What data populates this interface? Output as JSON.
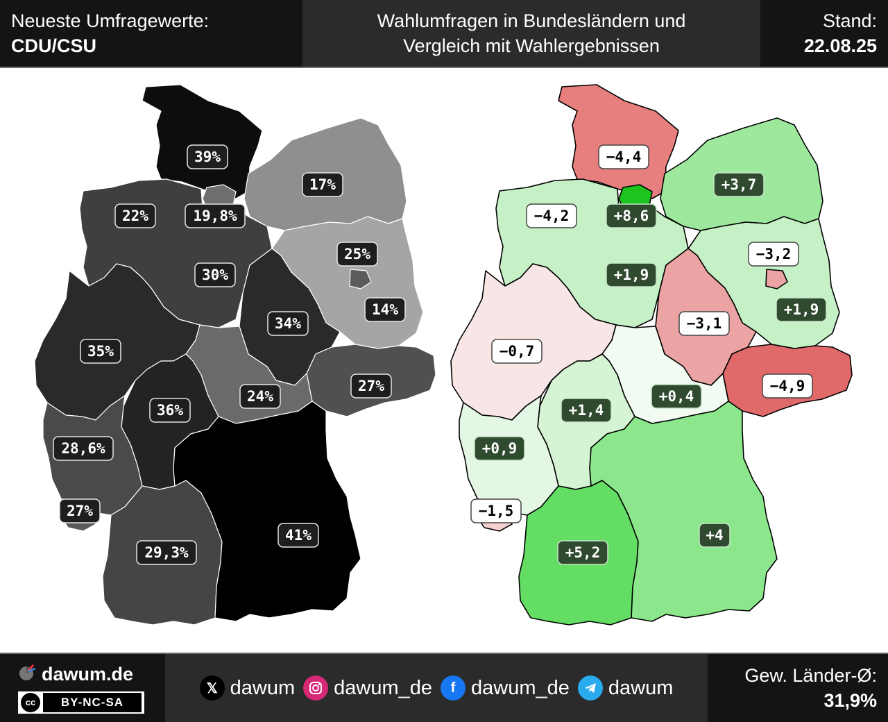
{
  "header": {
    "left_label": "Neueste Umfragewerte:",
    "party": "CDU/CSU",
    "title_line1": "Wahlumfragen in Bundesländern und",
    "title_line2": "Vergleich mit Wahlergebnissen",
    "date_label": "Stand:",
    "date": "22.08.25"
  },
  "footer": {
    "brand": "dawum.de",
    "license_cc": "cc",
    "license": "BY-NC-SA",
    "socials": [
      {
        "icon": "x-icon",
        "handle": "dawum"
      },
      {
        "icon": "instagram-icon",
        "handle": "dawum_de"
      },
      {
        "icon": "facebook-icon",
        "handle": "dawum_de"
      },
      {
        "icon": "telegram-icon",
        "handle": "dawum"
      }
    ],
    "avg_label": "Gew. Länder-Ø:",
    "avg_value": "31,9%"
  },
  "chart_data": {
    "type": "choropleth",
    "maps": [
      {
        "name": "poll",
        "regions": [
          {
            "id": "SH",
            "label": "39%",
            "fill": "#0d0d0d"
          },
          {
            "id": "MV",
            "label": "17%",
            "fill": "#8f8f8f"
          },
          {
            "id": "HB",
            "label": "22%",
            "fill": "#3f3f3f"
          },
          {
            "id": "HH",
            "label": "19,8%",
            "fill": "#6e6e6e"
          },
          {
            "id": "NI",
            "label": "30%",
            "fill": "#3f3f3f"
          },
          {
            "id": "BB",
            "label": "14%",
            "fill": "#a5a5a5"
          },
          {
            "id": "BE",
            "label": "25%",
            "fill": "#5c5c5c"
          },
          {
            "id": "ST",
            "label": "34%",
            "fill": "#2a2a2a"
          },
          {
            "id": "NW",
            "label": "35%",
            "fill": "#2a2a2a"
          },
          {
            "id": "SN",
            "label": "27%",
            "fill": "#505050"
          },
          {
            "id": "TH",
            "label": "24%",
            "fill": "#6a6a6a"
          },
          {
            "id": "HE",
            "label": "36%",
            "fill": "#232323"
          },
          {
            "id": "RP",
            "label": "28,6%",
            "fill": "#4a4a4a"
          },
          {
            "id": "SL",
            "label": "27%",
            "fill": "#5b5b5b"
          },
          {
            "id": "BW",
            "label": "29,3%",
            "fill": "#454545"
          },
          {
            "id": "BY",
            "label": "41%",
            "fill": "#000000"
          }
        ]
      },
      {
        "name": "change",
        "regions": [
          {
            "id": "SH",
            "label": "−4,4",
            "fill": "#e87f7f"
          },
          {
            "id": "MV",
            "label": "+3,7",
            "fill": "#9ee89e"
          },
          {
            "id": "HB",
            "label": "−4,2",
            "fill": "#e88a8a"
          },
          {
            "id": "HH",
            "label": "+8,6",
            "fill": "#1ec41e"
          },
          {
            "id": "NI",
            "label": "+1,9",
            "fill": "#c6f1c6"
          },
          {
            "id": "BB",
            "label": "+1,9",
            "fill": "#c6f1c6"
          },
          {
            "id": "BE",
            "label": "−3,2",
            "fill": "#eba3a3"
          },
          {
            "id": "ST",
            "label": "−3,1",
            "fill": "#eba3a3"
          },
          {
            "id": "NW",
            "label": "−0,7",
            "fill": "#f8e6e6"
          },
          {
            "id": "SN",
            "label": "−4,9",
            "fill": "#e06969"
          },
          {
            "id": "TH",
            "label": "+0,4",
            "fill": "#f2fbf2"
          },
          {
            "id": "HE",
            "label": "+1,4",
            "fill": "#d4f4d4"
          },
          {
            "id": "RP",
            "label": "+0,9",
            "fill": "#e4f7e4"
          },
          {
            "id": "SL",
            "label": "−1,5",
            "fill": "#f5d0d0"
          },
          {
            "id": "BW",
            "label": "+5,2",
            "fill": "#63dd63"
          },
          {
            "id": "BY",
            "label": "+4",
            "fill": "#8ce78c"
          }
        ]
      }
    ]
  }
}
